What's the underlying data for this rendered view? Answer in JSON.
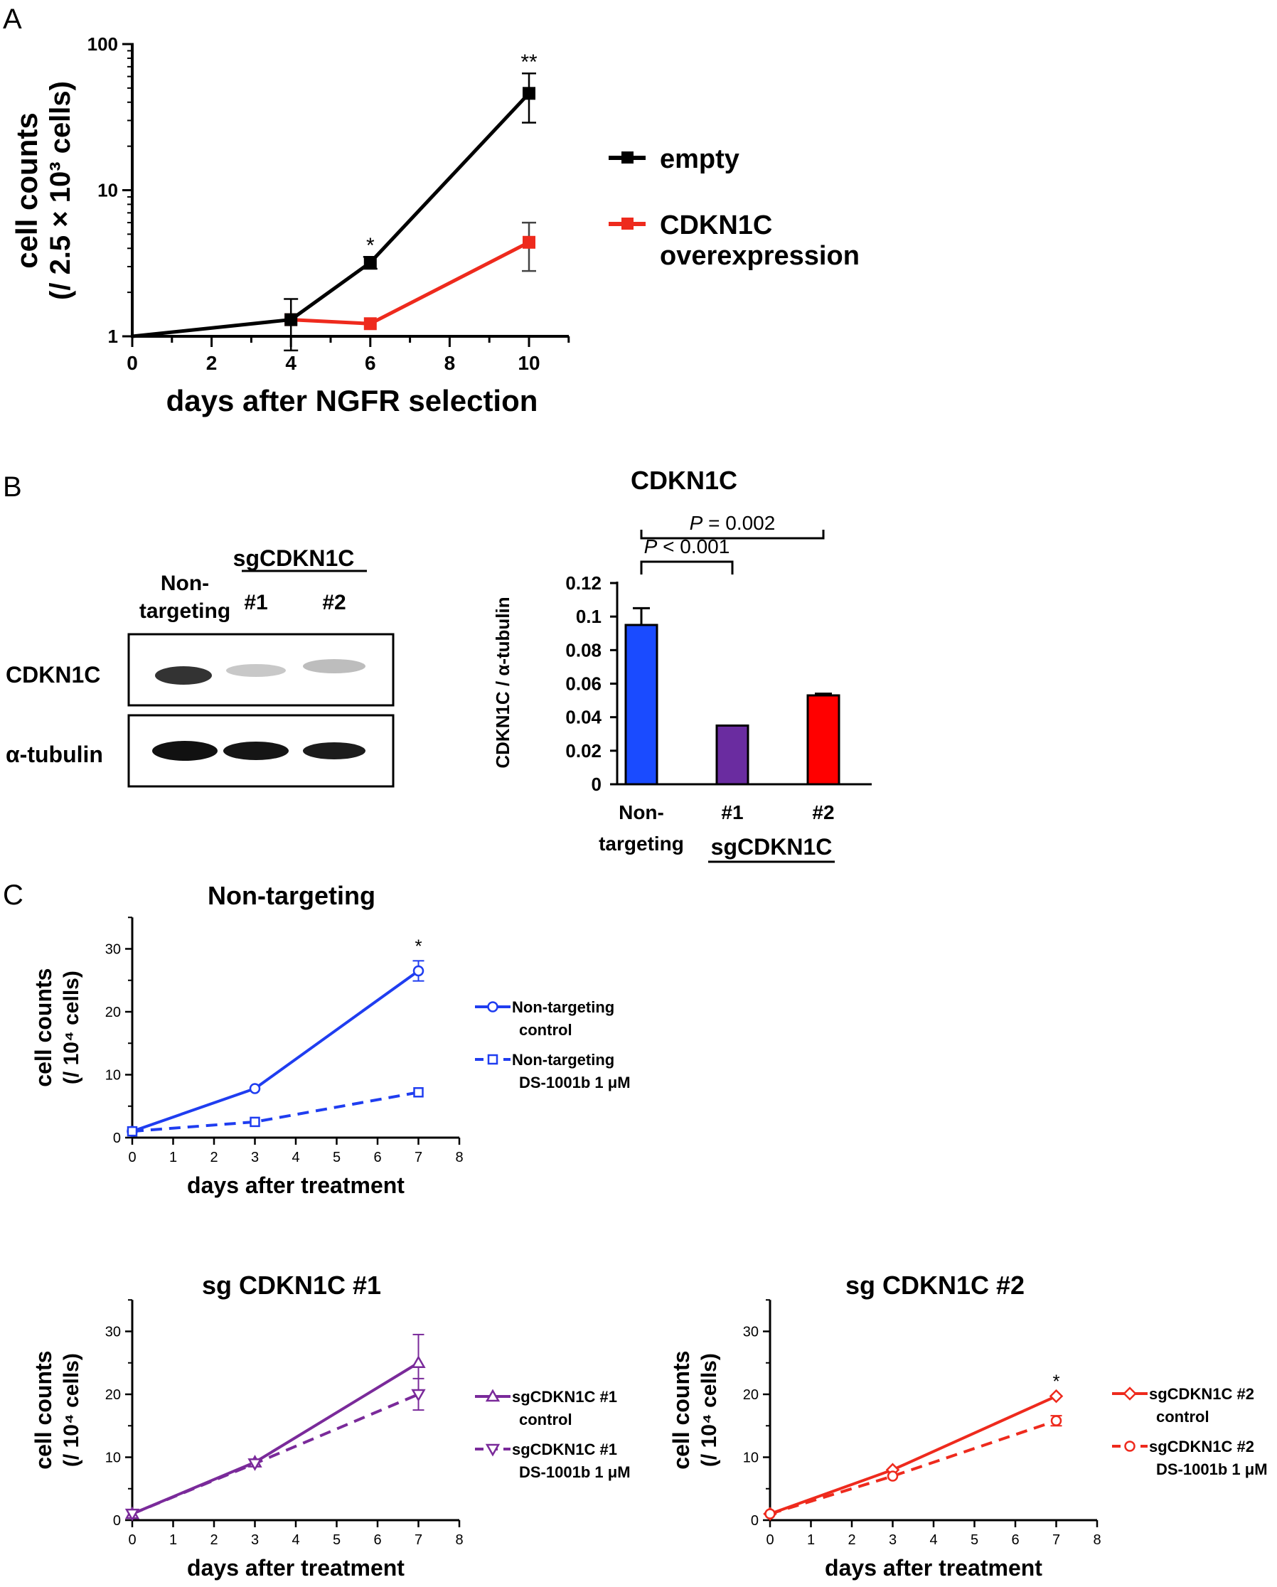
{
  "panels": {
    "A": "A",
    "B": "B",
    "C": "C"
  },
  "colors": {
    "black": "#000000",
    "red": "#ee2a1d",
    "blue": "#1f3df0",
    "purple": "#7a2a9a",
    "bar_blue": "#1a4bff",
    "bar_purple": "#6a2ca0",
    "bar_red": "#ff0000"
  },
  "chart_data": [
    {
      "id": "A",
      "type": "line",
      "yscale": "log",
      "title": "",
      "xlabel": "days after NGFR selection",
      "ylabel_line1": "cell counts",
      "ylabel_line2": "(/ 2.5 × 10³ cells)",
      "xlim": [
        0,
        11
      ],
      "ylim": [
        1,
        100
      ],
      "xticks": [
        "0",
        "2",
        "4",
        "6",
        "8",
        "10"
      ],
      "yticks": [
        "1",
        "10",
        "100"
      ],
      "series": [
        {
          "name": "empty",
          "color": "#000000",
          "marker": "square",
          "x": [
            0,
            4,
            6,
            10
          ],
          "y": [
            1,
            1.3,
            3.2,
            46
          ],
          "err": [
            0,
            0.5,
            0.3,
            17
          ],
          "significance": [
            "",
            "",
            "*",
            "**"
          ]
        },
        {
          "name": "CDKN1C overexpression",
          "legend_line1": "CDKN1C",
          "legend_line2": "overexpression",
          "color": "#ee2a1d",
          "marker": "square",
          "x": [
            4,
            6,
            10
          ],
          "y": [
            1.3,
            1.22,
            4.4
          ],
          "err": [
            0,
            0,
            1.6
          ]
        }
      ]
    },
    {
      "id": "B",
      "type": "bar",
      "title": "CDKN1C",
      "ylabel": "CDKN1C / α-tubulin",
      "categories": [
        "Non-targeting",
        "#1",
        "#2"
      ],
      "category_line1": [
        "Non-",
        "#1",
        "#2"
      ],
      "category_line2": [
        "targeting",
        "",
        ""
      ],
      "group_label": "sgCDKN1C",
      "values": [
        0.095,
        0.035,
        0.053
      ],
      "errors": [
        0.01,
        0,
        0.001
      ],
      "bar_colors": [
        "#1a4bff",
        "#6a2ca0",
        "#ff0000"
      ],
      "ylim": [
        0,
        0.12
      ],
      "yticks": [
        "0",
        "0.02",
        "0.04",
        "0.06",
        "0.08",
        "0.1",
        "0.12"
      ],
      "comparisons": [
        {
          "label_p": "P",
          "label_rest": " < 0.001",
          "from": 0,
          "to": 1
        },
        {
          "label_p": "P",
          "label_rest": " = 0.002",
          "from": 0,
          "to": 2
        }
      ]
    },
    {
      "id": "C1",
      "type": "line",
      "title": "Non-targeting",
      "xlabel": "days after treatment",
      "ylabel_line1": "cell counts",
      "ylabel_line2": "(/ 10⁴ cells)",
      "xlim": [
        0,
        8
      ],
      "ylim": [
        0,
        35
      ],
      "xticks": [
        "0",
        "1",
        "2",
        "3",
        "4",
        "5",
        "6",
        "7",
        "8"
      ],
      "yticks": [
        "0",
        "10",
        "20",
        "30"
      ],
      "series": [
        {
          "name": "Non-targeting control",
          "legend_line1": "Non-targeting",
          "legend_line2": "control",
          "color": "#1f3df0",
          "marker": "circle",
          "dash": false,
          "x": [
            0,
            3,
            7
          ],
          "y": [
            1,
            7.8,
            26.5
          ],
          "err": [
            0,
            0,
            1.6
          ],
          "significance": [
            "",
            "",
            "*"
          ]
        },
        {
          "name": "Non-targeting DS-1001b 1 μM",
          "legend_line1": "Non-targeting",
          "legend_line2": "DS-1001b 1 μM",
          "color": "#1f3df0",
          "marker": "square",
          "dash": true,
          "x": [
            0,
            3,
            7
          ],
          "y": [
            1,
            2.5,
            7.2
          ],
          "err": [
            0,
            0,
            0
          ]
        }
      ]
    },
    {
      "id": "C2",
      "type": "line",
      "title": "sg CDKN1C #1",
      "xlabel": "days after treatment",
      "ylabel_line1": "cell counts",
      "ylabel_line2": "(/ 10⁴ cells)",
      "xlim": [
        0,
        8
      ],
      "ylim": [
        0,
        35
      ],
      "xticks": [
        "0",
        "1",
        "2",
        "3",
        "4",
        "5",
        "6",
        "7",
        "8"
      ],
      "yticks": [
        "0",
        "10",
        "20",
        "30"
      ],
      "series": [
        {
          "name": "sgCDKN1C #1 control",
          "legend_line1": "sgCDKN1C #1",
          "legend_line2": "control",
          "color": "#7a2a9a",
          "marker": "triangle-up",
          "dash": false,
          "x": [
            0,
            3,
            7
          ],
          "y": [
            1,
            9.2,
            25
          ],
          "err": [
            0,
            0,
            4.5
          ]
        },
        {
          "name": "sgCDKN1C #1 DS-1001b 1 μM",
          "legend_line1": "sgCDKN1C #1",
          "legend_line2": "DS-1001b 1 μM",
          "color": "#7a2a9a",
          "marker": "triangle-down",
          "dash": true,
          "x": [
            0,
            3,
            7
          ],
          "y": [
            1,
            9.0,
            20
          ],
          "err": [
            0,
            0,
            2.5
          ]
        }
      ]
    },
    {
      "id": "C3",
      "type": "line",
      "title": "sg CDKN1C #2",
      "xlabel": "days after treatment",
      "ylabel_line1": "cell counts",
      "ylabel_line2": "(/ 10⁴ cells)",
      "xlim": [
        0,
        8
      ],
      "ylim": [
        0,
        35
      ],
      "xticks": [
        "0",
        "1",
        "2",
        "3",
        "4",
        "5",
        "6",
        "7",
        "8"
      ],
      "yticks": [
        "0",
        "10",
        "20",
        "30"
      ],
      "series": [
        {
          "name": "sgCDKN1C #2 control",
          "legend_line1": "sgCDKN1C #2",
          "legend_line2": "control",
          "color": "#ee2a1d",
          "marker": "diamond",
          "dash": false,
          "x": [
            0,
            3,
            7
          ],
          "y": [
            1,
            8.0,
            19.7
          ],
          "err": [
            0,
            0,
            0
          ],
          "significance": [
            "",
            "",
            "*"
          ]
        },
        {
          "name": "sgCDKN1C #2 DS-1001b 1 μM",
          "legend_line1": "sgCDKN1C #2",
          "legend_line2": "DS-1001b 1 μM",
          "color": "#ee2a1d",
          "marker": "circle",
          "dash": true,
          "x": [
            0,
            3,
            7
          ],
          "y": [
            1,
            7.0,
            15.8
          ],
          "err": [
            0,
            0,
            0.8
          ]
        }
      ]
    }
  ],
  "western_blot": {
    "group_label": "sgCDKN1C",
    "lane_labels_line1": [
      "Non-",
      "#1",
      "#2"
    ],
    "lane_labels_line2": [
      "targeting",
      "",
      ""
    ],
    "rows": [
      "CDKN1C",
      "α-tubulin"
    ]
  }
}
